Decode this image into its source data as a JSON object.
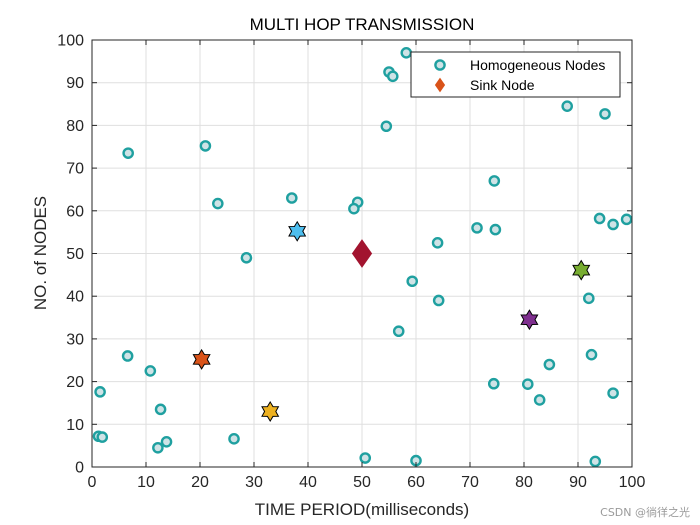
{
  "chart_data": {
    "type": "scatter",
    "title": "MULTI HOP TRANSMISSION",
    "xlabel": "TIME PERIOD(milliseconds)",
    "ylabel": "NO. of NODES",
    "xlim": [
      0,
      100
    ],
    "ylim": [
      0,
      100
    ],
    "xticks": [
      "0",
      "10",
      "20",
      "30",
      "40",
      "50",
      "60",
      "70",
      "80",
      "90",
      "100"
    ],
    "yticks": [
      "0",
      "10",
      "20",
      "30",
      "40",
      "50",
      "60",
      "70",
      "80",
      "90",
      "100"
    ],
    "grid": true,
    "legend_position": "top-right",
    "series": [
      {
        "name": "Homogeneous Nodes",
        "marker": "circle",
        "color": "#1fa0a0",
        "fill": "#cfe3e6",
        "points": [
          [
            58.2,
            97
          ],
          [
            55,
            92.5
          ],
          [
            55.7,
            91.5
          ],
          [
            88,
            84.5
          ],
          [
            95,
            82.7
          ],
          [
            54.5,
            79.8
          ],
          [
            6.7,
            73.5
          ],
          [
            21,
            75.2
          ],
          [
            74.5,
            67
          ],
          [
            37,
            63
          ],
          [
            23.3,
            61.7
          ],
          [
            49.2,
            62
          ],
          [
            48.5,
            60.5
          ],
          [
            94,
            58.2
          ],
          [
            99,
            58
          ],
          [
            96.5,
            56.8
          ],
          [
            71.3,
            56
          ],
          [
            74.7,
            55.6
          ],
          [
            64,
            52.5
          ],
          [
            28.6,
            49
          ],
          [
            59.3,
            43.5
          ],
          [
            64.2,
            39
          ],
          [
            92,
            39.5
          ],
          [
            56.8,
            31.8
          ],
          [
            6.6,
            26
          ],
          [
            92.5,
            26.3
          ],
          [
            10.8,
            22.5
          ],
          [
            84.7,
            24
          ],
          [
            1.5,
            17.6
          ],
          [
            74.4,
            19.5
          ],
          [
            80.7,
            19.4
          ],
          [
            96.5,
            17.3
          ],
          [
            82.9,
            15.7
          ],
          [
            12.7,
            13.5
          ],
          [
            1.2,
            7.2
          ],
          [
            1.9,
            7
          ],
          [
            26.3,
            6.6
          ],
          [
            13.8,
            5.9
          ],
          [
            12.2,
            4.5
          ],
          [
            50.6,
            2.1
          ],
          [
            60,
            1.5
          ],
          [
            93.2,
            1.3
          ]
        ]
      },
      {
        "name": "Sink Node",
        "marker": "diamond",
        "color": "#d95319",
        "points": [
          [
            50,
            50
          ]
        ]
      }
    ],
    "sink_display": {
      "marker": "diamond",
      "color": "#a2142f",
      "point": [
        50,
        50
      ]
    },
    "cluster_heads": [
      {
        "marker": "hexagram",
        "color": "#4dbeee",
        "point": [
          38,
          55.2
        ]
      },
      {
        "marker": "hexagram",
        "color": "#d95319",
        "point": [
          20.3,
          25.2
        ]
      },
      {
        "marker": "hexagram",
        "color": "#edb120",
        "point": [
          33,
          13
        ]
      },
      {
        "marker": "hexagram",
        "color": "#7e2f8e",
        "point": [
          81,
          34.5
        ]
      },
      {
        "marker": "hexagram",
        "color": "#77ac30",
        "point": [
          90.6,
          46.1
        ]
      }
    ]
  },
  "watermark": "CSDN @徜徉之光",
  "colors": {
    "axis": "#262626",
    "grid": "#dfdfdf"
  }
}
